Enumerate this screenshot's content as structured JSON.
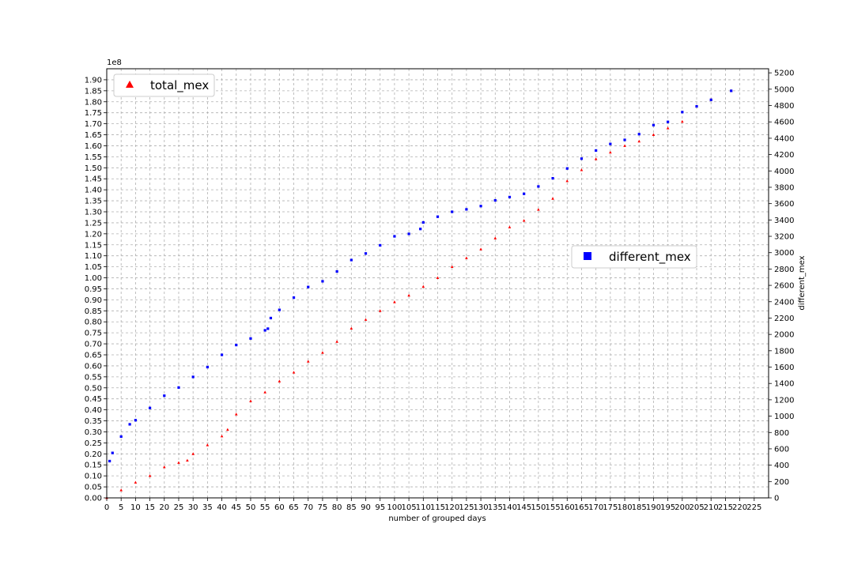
{
  "chart_data": {
    "type": "scatter",
    "xlabel": "number of grouped days",
    "ylabel_left": "",
    "ylabel_right": "different_mex",
    "offset_text": "1e8",
    "xlim": [
      0,
      230
    ],
    "ylim_left": [
      0,
      1.95
    ],
    "ylim_right": [
      0,
      5250
    ],
    "xticks": [
      0,
      5,
      10,
      15,
      20,
      25,
      30,
      35,
      40,
      45,
      50,
      55,
      60,
      65,
      70,
      75,
      80,
      85,
      90,
      95,
      100,
      105,
      110,
      115,
      120,
      125,
      130,
      135,
      140,
      145,
      150,
      155,
      160,
      165,
      170,
      175,
      180,
      185,
      190,
      195,
      200,
      205,
      210,
      215,
      220,
      225
    ],
    "yticks_left": [
      "0.00",
      "0.05",
      "0.10",
      "0.15",
      "0.20",
      "0.25",
      "0.30",
      "0.35",
      "0.40",
      "0.45",
      "0.50",
      "0.55",
      "0.60",
      "0.65",
      "0.70",
      "0.75",
      "0.80",
      "0.85",
      "0.90",
      "0.95",
      "1.00",
      "1.05",
      "1.10",
      "1.15",
      "1.20",
      "1.25",
      "1.30",
      "1.35",
      "1.40",
      "1.45",
      "1.50",
      "1.55",
      "1.60",
      "1.65",
      "1.70",
      "1.75",
      "1.80",
      "1.85",
      "1.90"
    ],
    "yticks_right": [
      0,
      200,
      400,
      600,
      800,
      1000,
      1200,
      1400,
      1600,
      1800,
      2000,
      2200,
      2400,
      2600,
      2800,
      3000,
      3200,
      3400,
      3600,
      3800,
      4000,
      4200,
      4400,
      4600,
      4800,
      5000,
      5200
    ],
    "grid": true,
    "series": [
      {
        "name": "total_mex",
        "axis": "left",
        "marker": "triangle",
        "color": "#ff0000",
        "legend_position": "upper-left",
        "x": [
          0,
          5,
          10,
          15,
          20,
          25,
          28,
          30,
          35,
          40,
          42,
          45,
          50,
          55,
          60,
          65,
          70,
          75,
          80,
          85,
          90,
          95,
          100,
          105,
          110,
          115,
          120,
          125,
          130,
          135,
          140,
          145,
          150,
          155,
          160,
          165,
          170,
          175,
          180,
          185,
          190,
          195,
          200,
          205,
          210,
          217
        ],
        "y": [
          0.0,
          0.035,
          0.07,
          0.1,
          0.14,
          0.16,
          0.17,
          0.2,
          0.24,
          0.28,
          0.31,
          0.38,
          0.44,
          0.48,
          0.53,
          0.57,
          0.62,
          0.66,
          0.71,
          0.77,
          0.81,
          0.85,
          0.89,
          0.92,
          0.96,
          1.0,
          1.05,
          1.09,
          1.13,
          1.18,
          1.23,
          1.26,
          1.31,
          1.36,
          1.44,
          1.49,
          1.54,
          1.57,
          1.6,
          1.62,
          1.65,
          1.68,
          1.71,
          1.78,
          1.81,
          1.85
        ]
      },
      {
        "name": "different_mex",
        "axis": "right",
        "marker": "square",
        "color": "#0000ff",
        "legend_position": "center-right",
        "x": [
          1,
          2,
          5,
          8,
          10,
          15,
          20,
          25,
          30,
          35,
          40,
          45,
          50,
          55,
          56,
          57,
          60,
          65,
          70,
          75,
          80,
          85,
          90,
          95,
          100,
          105,
          109,
          110,
          115,
          120,
          125,
          130,
          135,
          140,
          145,
          150,
          155,
          160,
          165,
          170,
          175,
          180,
          185,
          190,
          195,
          200,
          205,
          210,
          217
        ],
        "y": [
          450,
          550,
          750,
          900,
          950,
          1100,
          1250,
          1350,
          1480,
          1600,
          1750,
          1870,
          1950,
          2050,
          2070,
          2200,
          2300,
          2450,
          2580,
          2650,
          2770,
          2910,
          2990,
          3090,
          3200,
          3230,
          3290,
          3370,
          3440,
          3500,
          3530,
          3570,
          3640,
          3680,
          3720,
          3810,
          3910,
          4030,
          4150,
          4250,
          4330,
          4380,
          4450,
          4560,
          4600,
          4720,
          4790,
          4870,
          4980
        ]
      }
    ]
  }
}
